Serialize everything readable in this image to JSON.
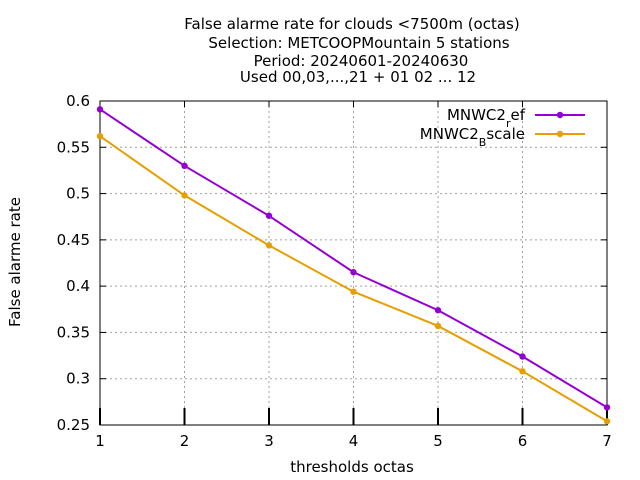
{
  "chart_data": {
    "type": "line",
    "title_lines": [
      "False alarme rate  for clouds <7500m (octas)",
      "Selection: METCOOPMountain      5 stations",
      "Period: 20240601-20240630",
      "Used 00,03,...,21 + 01 02 ... 12"
    ],
    "xlabel": "thresholds octas",
    "ylabel": "False alarme rate",
    "x": [
      1,
      2,
      3,
      4,
      5,
      6,
      7
    ],
    "xlim": [
      1,
      7
    ],
    "ylim": [
      0.25,
      0.6
    ],
    "x_ticks": [
      1,
      2,
      3,
      4,
      5,
      6,
      7
    ],
    "y_ticks": [
      0.25,
      0.3,
      0.35,
      0.4,
      0.45,
      0.5,
      0.55,
      0.6
    ],
    "y_tick_labels": [
      "0.25",
      "0.3",
      "0.35",
      "0.4",
      "0.45",
      "0.5",
      "0.55",
      "0.6"
    ],
    "grid": true,
    "legend_position": "top-right",
    "series": [
      {
        "name_main": "MNWC2",
        "name_sub": "r",
        "name_rest": "ef",
        "color": "#9400d3",
        "values": [
          0.591,
          0.53,
          0.476,
          0.415,
          0.374,
          0.324,
          0.269
        ]
      },
      {
        "name_main": "MNWC2",
        "name_sub": "B",
        "name_rest": "scale",
        "color": "#e69f00",
        "values": [
          0.562,
          0.498,
          0.444,
          0.394,
          0.357,
          0.308,
          0.254
        ]
      }
    ]
  }
}
